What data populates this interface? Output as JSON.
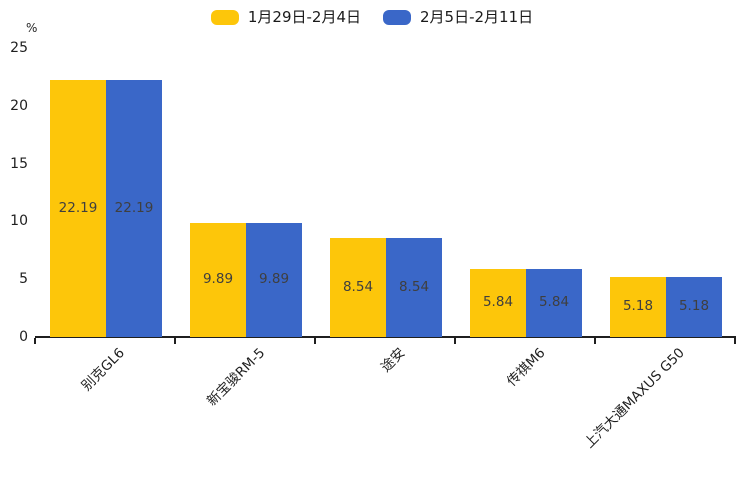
{
  "colors": {
    "series_yellow": "#FDC60A",
    "series_blue": "#3A67C8",
    "axis": "#1f1f1f",
    "value_label": "#3f3f3f"
  },
  "chart_data": {
    "type": "bar",
    "title": "",
    "unit_label": "%",
    "categories": [
      "别克GL6",
      "新宝骏RM-5",
      "途安",
      "传祺M6",
      "上汽大通MAXUS G50"
    ],
    "series": [
      {
        "name": "1月29日-2月4日",
        "color": "#FDC60A",
        "values": [
          22.19,
          9.89,
          8.54,
          5.84,
          5.18
        ]
      },
      {
        "name": "2月5日-2月11日",
        "color": "#3A67C8",
        "values": [
          22.19,
          9.89,
          8.54,
          5.84,
          5.18
        ]
      }
    ],
    "value_labels": [
      "22.19",
      "9.89",
      "8.54",
      "5.84",
      "5.18"
    ],
    "ylim": [
      0,
      25
    ],
    "yticks": [
      0,
      5,
      10,
      15,
      20,
      25
    ],
    "legend_position": "top-center",
    "grid": false,
    "value_label_position": "inside-center"
  }
}
